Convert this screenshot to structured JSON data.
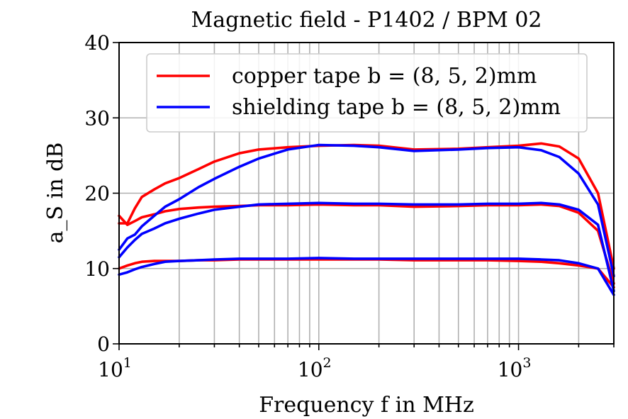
{
  "chart_data": {
    "type": "line",
    "title": "Magnetic field - P1402 / BPM 02",
    "xlabel": "Frequency f in MHz",
    "ylabel": "a_S in dB",
    "xscale": "log",
    "xlim": [
      10,
      3000
    ],
    "ylim": [
      0,
      40
    ],
    "x_ticks": [
      {
        "base": "10",
        "exp": "1"
      },
      {
        "base": "10",
        "exp": "2"
      },
      {
        "base": "10",
        "exp": "3"
      }
    ],
    "y_ticks": [
      "0",
      "10",
      "20",
      "30",
      "40"
    ],
    "grid": true,
    "legend_position": "top-right",
    "legend": [
      {
        "label": "copper tape b = (8, 5, 2)mm",
        "color": "#ff0000"
      },
      {
        "label": "shielding tape b = (8, 5, 2)mm",
        "color": "#0000ff"
      }
    ],
    "series": [
      {
        "name": "copper tape b = (8, 5, 2)mm",
        "color": "#ff0000",
        "x": [
          10,
          11,
          12,
          13,
          15,
          17,
          20,
          25,
          30,
          40,
          50,
          70,
          100,
          150,
          200,
          300,
          500,
          700,
          1000,
          1300,
          1600,
          2000,
          2500,
          3000
        ],
        "y": [
          16.0,
          16.0,
          18.0,
          19.5,
          20.5,
          21.3,
          22.0,
          23.2,
          24.2,
          25.3,
          25.8,
          26.1,
          26.3,
          26.4,
          26.3,
          25.8,
          25.9,
          26.1,
          26.3,
          26.6,
          26.2,
          24.6,
          20.0,
          10.0
        ]
      },
      {
        "name": "copper tape b = (8, 5, 2)mm",
        "color": "#ff0000",
        "x": [
          10,
          11,
          12,
          13,
          15,
          17,
          20,
          25,
          30,
          40,
          50,
          70,
          100,
          150,
          200,
          300,
          500,
          700,
          1000,
          1300,
          1600,
          2000,
          2500,
          3000
        ],
        "y": [
          17.0,
          15.8,
          16.3,
          16.8,
          17.2,
          17.6,
          17.9,
          18.1,
          18.2,
          18.3,
          18.4,
          18.4,
          18.5,
          18.4,
          18.4,
          18.2,
          18.3,
          18.4,
          18.4,
          18.5,
          18.3,
          17.4,
          15.0,
          8.0
        ]
      },
      {
        "name": "copper tape b = (8, 5, 2)mm",
        "color": "#ff0000",
        "x": [
          10,
          11,
          12,
          13,
          15,
          17,
          20,
          25,
          30,
          40,
          50,
          70,
          100,
          150,
          200,
          300,
          500,
          700,
          1000,
          1300,
          1600,
          2000,
          2500,
          3000
        ],
        "y": [
          10.0,
          10.4,
          10.7,
          10.9,
          11.0,
          11.0,
          11.0,
          11.1,
          11.1,
          11.2,
          11.2,
          11.2,
          11.2,
          11.2,
          11.2,
          11.1,
          11.1,
          11.1,
          11.0,
          10.9,
          10.7,
          10.4,
          10.0,
          7.5
        ]
      },
      {
        "name": "shielding tape b = (8, 5, 2)mm",
        "color": "#0000ff",
        "x": [
          10,
          11,
          12,
          13,
          15,
          17,
          20,
          25,
          30,
          40,
          50,
          70,
          100,
          150,
          200,
          300,
          500,
          700,
          1000,
          1300,
          1600,
          2000,
          2500,
          3000
        ],
        "y": [
          12.5,
          14.0,
          14.5,
          15.6,
          17.0,
          18.2,
          19.2,
          20.8,
          21.9,
          23.5,
          24.6,
          25.8,
          26.4,
          26.3,
          26.1,
          25.6,
          25.8,
          26.0,
          26.1,
          25.7,
          24.8,
          22.6,
          18.5,
          9.0
        ]
      },
      {
        "name": "shielding tape b = (8, 5, 2)mm",
        "color": "#0000ff",
        "x": [
          10,
          11,
          12,
          13,
          15,
          17,
          20,
          25,
          30,
          40,
          50,
          70,
          100,
          150,
          200,
          300,
          500,
          700,
          1000,
          1300,
          1600,
          2000,
          2500,
          3000
        ],
        "y": [
          11.5,
          12.8,
          13.8,
          14.6,
          15.3,
          16.0,
          16.6,
          17.3,
          17.8,
          18.2,
          18.5,
          18.6,
          18.7,
          18.6,
          18.6,
          18.5,
          18.5,
          18.6,
          18.6,
          18.7,
          18.5,
          17.8,
          15.8,
          7.0
        ]
      },
      {
        "name": "shielding tape b = (8, 5, 2)mm",
        "color": "#0000ff",
        "x": [
          10,
          11,
          12,
          13,
          15,
          17,
          20,
          25,
          30,
          40,
          50,
          70,
          100,
          150,
          200,
          300,
          500,
          700,
          1000,
          1300,
          1600,
          2000,
          2500,
          3000
        ],
        "y": [
          9.2,
          9.5,
          9.9,
          10.2,
          10.6,
          10.9,
          11.0,
          11.1,
          11.2,
          11.3,
          11.3,
          11.3,
          11.4,
          11.3,
          11.3,
          11.3,
          11.3,
          11.3,
          11.3,
          11.2,
          11.1,
          10.7,
          10.0,
          6.5
        ]
      }
    ]
  }
}
